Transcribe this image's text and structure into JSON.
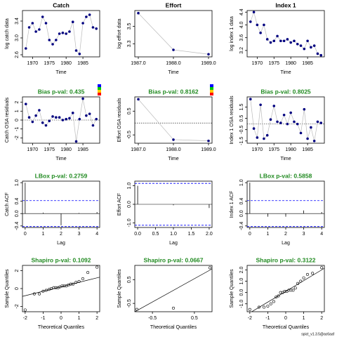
{
  "chart_data": [
    {
      "type": "line",
      "title": "Catch",
      "xlabel": "Time",
      "ylabel": "log catch data",
      "x": [
        1968,
        1969,
        1970,
        1971,
        1972,
        1973,
        1974,
        1975,
        1976,
        1977,
        1978,
        1979,
        1980,
        1981,
        1982,
        1983,
        1984,
        1985,
        1986,
        1987,
        1988,
        1989
      ],
      "values": [
        2.75,
        3.25,
        3.35,
        3.15,
        3.2,
        3.5,
        3.35,
        2.95,
        2.85,
        2.95,
        3.1,
        3.12,
        3.1,
        3.15,
        3.38,
        2.7,
        2.62,
        3.35,
        3.5,
        3.55,
        3.25,
        3.22
      ],
      "xlim": [
        1967,
        1990
      ],
      "xticks": [
        1970,
        1975,
        1980,
        1985
      ],
      "ylim": [
        2.55,
        3.65
      ],
      "yticks": [
        2.6,
        {
          "value": 3,
          "label": "3.0"
        },
        3.4
      ],
      "color": "#000080"
    },
    {
      "type": "line",
      "title": "Effort",
      "xlabel": "Time",
      "ylabel": "log effort data",
      "x": [
        1987,
        1988,
        1989
      ],
      "values": [
        3.65,
        3.23,
        3.18
      ],
      "xlim": [
        1986.9,
        1989.1
      ],
      "xticks": [
        {
          "value": 1987,
          "label": "1987.0"
        },
        {
          "value": 1988,
          "label": "1988.0"
        },
        {
          "value": 1989,
          "label": "1989.0"
        }
      ],
      "ylim": [
        3.15,
        3.68
      ],
      "yticks": [
        3.3,
        3.5
      ],
      "color": "#000080"
    },
    {
      "type": "line",
      "title": "Index 1",
      "xlabel": "Time",
      "ylabel": "log index 1 data",
      "x": [
        1968,
        1969,
        1970,
        1971,
        1972,
        1973,
        1974,
        1975,
        1976,
        1977,
        1978,
        1979,
        1980,
        1981,
        1982,
        1983,
        1984,
        1985,
        1986,
        1987,
        1988,
        1989
      ],
      "values": [
        4.1,
        4.4,
        4.0,
        3.75,
        4.0,
        3.55,
        3.45,
        3.5,
        3.65,
        3.5,
        3.5,
        3.55,
        3.45,
        3.5,
        3.4,
        3.35,
        3.25,
        3.5,
        3.3,
        3.35,
        3.1,
        3.05
      ],
      "xlim": [
        1967,
        1990
      ],
      "xticks": [
        1970,
        1975,
        1980,
        1985
      ],
      "ylim": [
        3.0,
        4.45
      ],
      "yticks": [
        3.2,
        3.6,
        {
          "value": 4,
          "label": "4.0"
        },
        4.4
      ],
      "color": "#000080"
    },
    {
      "type": "line",
      "title": "Bias p-val: 0.435",
      "title_color": "#228b22",
      "xlabel": "Time",
      "ylabel": "Catch OSA residuals",
      "x": [
        1968,
        1969,
        1970,
        1971,
        1972,
        1973,
        1974,
        1975,
        1976,
        1977,
        1978,
        1979,
        1980,
        1981,
        1982,
        1983,
        1984,
        1985,
        1986,
        1987,
        1988,
        1989
      ],
      "values": [
        1.8,
        0.3,
        -0.2,
        0.5,
        1.1,
        -0.3,
        -0.6,
        -0.1,
        0.4,
        0.3,
        0.3,
        0.0,
        0.1,
        0.2,
        0.8,
        -2.4,
        0.1,
        2.4,
        0.5,
        0.7,
        -0.6,
        0.1
      ],
      "xlim": [
        1967,
        1990
      ],
      "xticks": [
        1970,
        1975,
        1980,
        1985
      ],
      "ylim": [
        -2.6,
        2.6
      ],
      "yticks": [
        -2,
        -1,
        0,
        1,
        2
      ],
      "hline": 0,
      "color": "#000080"
    },
    {
      "type": "line",
      "title": "Bias p-val: 0.8162",
      "title_color": "#228b22",
      "xlabel": "Time",
      "ylabel": "Effort OSA residuals",
      "x": [
        1987,
        1988,
        1989
      ],
      "values": [
        1.0,
        -0.7,
        -0.75
      ],
      "xlim": [
        1986.9,
        1989.1
      ],
      "xticks": [
        {
          "value": 1987,
          "label": "1987.0"
        },
        {
          "value": 1988,
          "label": "1988.0"
        },
        {
          "value": 1989,
          "label": "1989.0"
        }
      ],
      "ylim": [
        -0.85,
        1.1
      ],
      "yticks": [
        -0.5,
        0.5
      ],
      "hline": 0,
      "color": "#000080"
    },
    {
      "type": "line",
      "title": "Bias p-val: 0.8025",
      "title_color": "#228b22",
      "xlabel": "Time",
      "ylabel": "Index 1 OSA residuals",
      "x": [
        1968,
        1969,
        1970,
        1971,
        1972,
        1973,
        1974,
        1975,
        1976,
        1977,
        1978,
        1979,
        1980,
        1981,
        1982,
        1983,
        1984,
        1985,
        1986,
        1987,
        1988,
        1989
      ],
      "values": [
        2.2,
        -0.4,
        -1.2,
        1.7,
        -1.3,
        -1.0,
        0.4,
        1.6,
        0.2,
        0.1,
        0.8,
        0.0,
        1.0,
        0.2,
        0.0,
        -0.8,
        1.3,
        -1.3,
        -0.3,
        -1.5,
        0.2,
        0.1
      ],
      "xlim": [
        1967,
        1990
      ],
      "xticks": [
        1970,
        1975,
        1980,
        1985
      ],
      "ylim": [
        -1.7,
        2.4
      ],
      "yticks": [
        -1.5,
        -0.5,
        0.5,
        1.5
      ],
      "hline": 0,
      "color": "#000080"
    },
    {
      "type": "acf",
      "title": "LBox p-val: 0.2759",
      "title_color": "#228b22",
      "xlabel": "Lag",
      "ylabel": "Catch ACF",
      "x": [
        0,
        1,
        2,
        3,
        4
      ],
      "values": [
        1.0,
        0.03,
        -0.38,
        0.02,
        0.05
      ],
      "ci": 0.42,
      "xlim": [
        -0.15,
        4.15
      ],
      "xticks": [
        0,
        1,
        2,
        3,
        4
      ],
      "ylim": [
        -0.45,
        1.05
      ],
      "yticks": [
        -0.4,
        {
          "value": 0,
          "label": "0.0"
        },
        0.4,
        {
          "value": 1,
          "label": "1.0"
        }
      ],
      "color": "#000000",
      "ci_color": "#0000ff"
    },
    {
      "type": "acf",
      "xlabel": "Lag",
      "ylabel": "Effort ACF",
      "x": [
        0,
        1,
        2
      ],
      "values": [
        1.0,
        -0.05,
        -0.2
      ],
      "ci": 1.13,
      "xlim": [
        -0.08,
        2.08
      ],
      "xticks": [
        {
          "value": 0,
          "label": "0.0"
        },
        0.5,
        {
          "value": 1,
          "label": "1.0"
        },
        1.5,
        {
          "value": 2,
          "label": "2.0"
        }
      ],
      "ylim": [
        -1.25,
        1.25
      ],
      "yticks": [
        {
          "value": -1,
          "label": "-1.0"
        },
        {
          "value": 0,
          "label": "0.0"
        },
        {
          "value": 1,
          "label": "1.0"
        }
      ],
      "color": "#000000",
      "ci_color": "#0000ff"
    },
    {
      "type": "acf",
      "title": "LBox p-val: 0.5858",
      "title_color": "#228b22",
      "xlabel": "Lag",
      "ylabel": "Index 1 ACF",
      "x": [
        0,
        1,
        2,
        3,
        4
      ],
      "values": [
        1.0,
        -0.1,
        -0.1,
        0.1,
        0.05
      ],
      "ci": 0.42,
      "xlim": [
        -0.15,
        4.15
      ],
      "xticks": [
        0,
        1,
        2,
        3,
        4
      ],
      "ylim": [
        -0.45,
        1.05
      ],
      "yticks": [
        -0.4,
        {
          "value": 0,
          "label": "0.0"
        },
        0.4,
        {
          "value": 1,
          "label": "1.0"
        }
      ],
      "color": "#000000",
      "ci_color": "#0000ff"
    },
    {
      "type": "scatter",
      "title": "Shapiro p-val: 0.1092",
      "title_color": "#228b22",
      "xlabel": "Theoretical Quantiles",
      "ylabel": "Sample Quantiles",
      "x": [
        -2.0,
        -1.49,
        -1.21,
        -1.0,
        -0.83,
        -0.67,
        -0.54,
        -0.41,
        -0.29,
        -0.17,
        -0.06,
        0.06,
        0.17,
        0.29,
        0.41,
        0.54,
        0.67,
        0.83,
        1.0,
        1.21,
        1.49,
        2.0
      ],
      "values": [
        -2.4,
        -0.6,
        -0.6,
        -0.3,
        -0.2,
        -0.1,
        0.0,
        0.1,
        0.1,
        0.1,
        0.2,
        0.3,
        0.3,
        0.3,
        0.4,
        0.5,
        0.5,
        0.7,
        0.8,
        1.1,
        1.8,
        2.4
      ],
      "qqline": {
        "intercept": 0.2,
        "slope": 0.5
      },
      "xlim": [
        -2.15,
        2.15
      ],
      "xticks": [
        -2,
        -1,
        0,
        1,
        2
      ],
      "ylim": [
        -2.6,
        2.6
      ],
      "yticks": [
        -2,
        0,
        2
      ],
      "color": "#000000"
    },
    {
      "type": "scatter",
      "title": "Shapiro p-val: 0.0667",
      "title_color": "#228b22",
      "xlabel": "Theoretical Quantiles",
      "ylabel": "Sample Quantiles",
      "x": [
        -0.87,
        0,
        0.87
      ],
      "values": [
        -0.75,
        -0.7,
        1.0
      ],
      "qqline": {
        "intercept": 0.05,
        "slope": 0.98
      },
      "xlim": [
        -0.92,
        0.92
      ],
      "xticks": [
        -0.5,
        0.5
      ],
      "ylim": [
        -0.85,
        1.1
      ],
      "yticks": [
        -0.5,
        0.5
      ],
      "color": "#000000"
    },
    {
      "type": "scatter",
      "title": "Shapiro p-val: 0.3122",
      "title_color": "#228b22",
      "xlabel": "Theoretical Quantiles",
      "ylabel": "Sample Quantiles",
      "x": [
        -2.0,
        -1.49,
        -1.21,
        -1.0,
        -0.83,
        -0.67,
        -0.54,
        -0.41,
        -0.29,
        -0.17,
        -0.06,
        0.06,
        0.17,
        0.29,
        0.41,
        0.54,
        0.67,
        0.83,
        1.0,
        1.21,
        1.49,
        2.0
      ],
      "values": [
        -1.5,
        -1.3,
        -1.3,
        -1.2,
        -1.0,
        -0.8,
        -0.4,
        -0.3,
        0.0,
        0.0,
        0.1,
        0.1,
        0.2,
        0.2,
        0.2,
        0.4,
        0.8,
        1.0,
        1.3,
        1.6,
        1.7,
        2.2
      ],
      "qqline": {
        "intercept": 0.1,
        "slope": 0.95
      },
      "xlim": [
        -2.15,
        2.15
      ],
      "xticks": [
        -2,
        -1,
        0,
        1,
        2
      ],
      "ylim": [
        -1.7,
        2.4
      ],
      "yticks": [
        {
          "value": -1,
          "label": "-1.0"
        },
        {
          "value": 0,
          "label": "0.0"
        },
        {
          "value": 1,
          "label": "1.0"
        },
        {
          "value": 2,
          "label": "2.0"
        }
      ],
      "color": "#000000"
    }
  ],
  "footer": "spict_v1.3.5@ac6aaf"
}
